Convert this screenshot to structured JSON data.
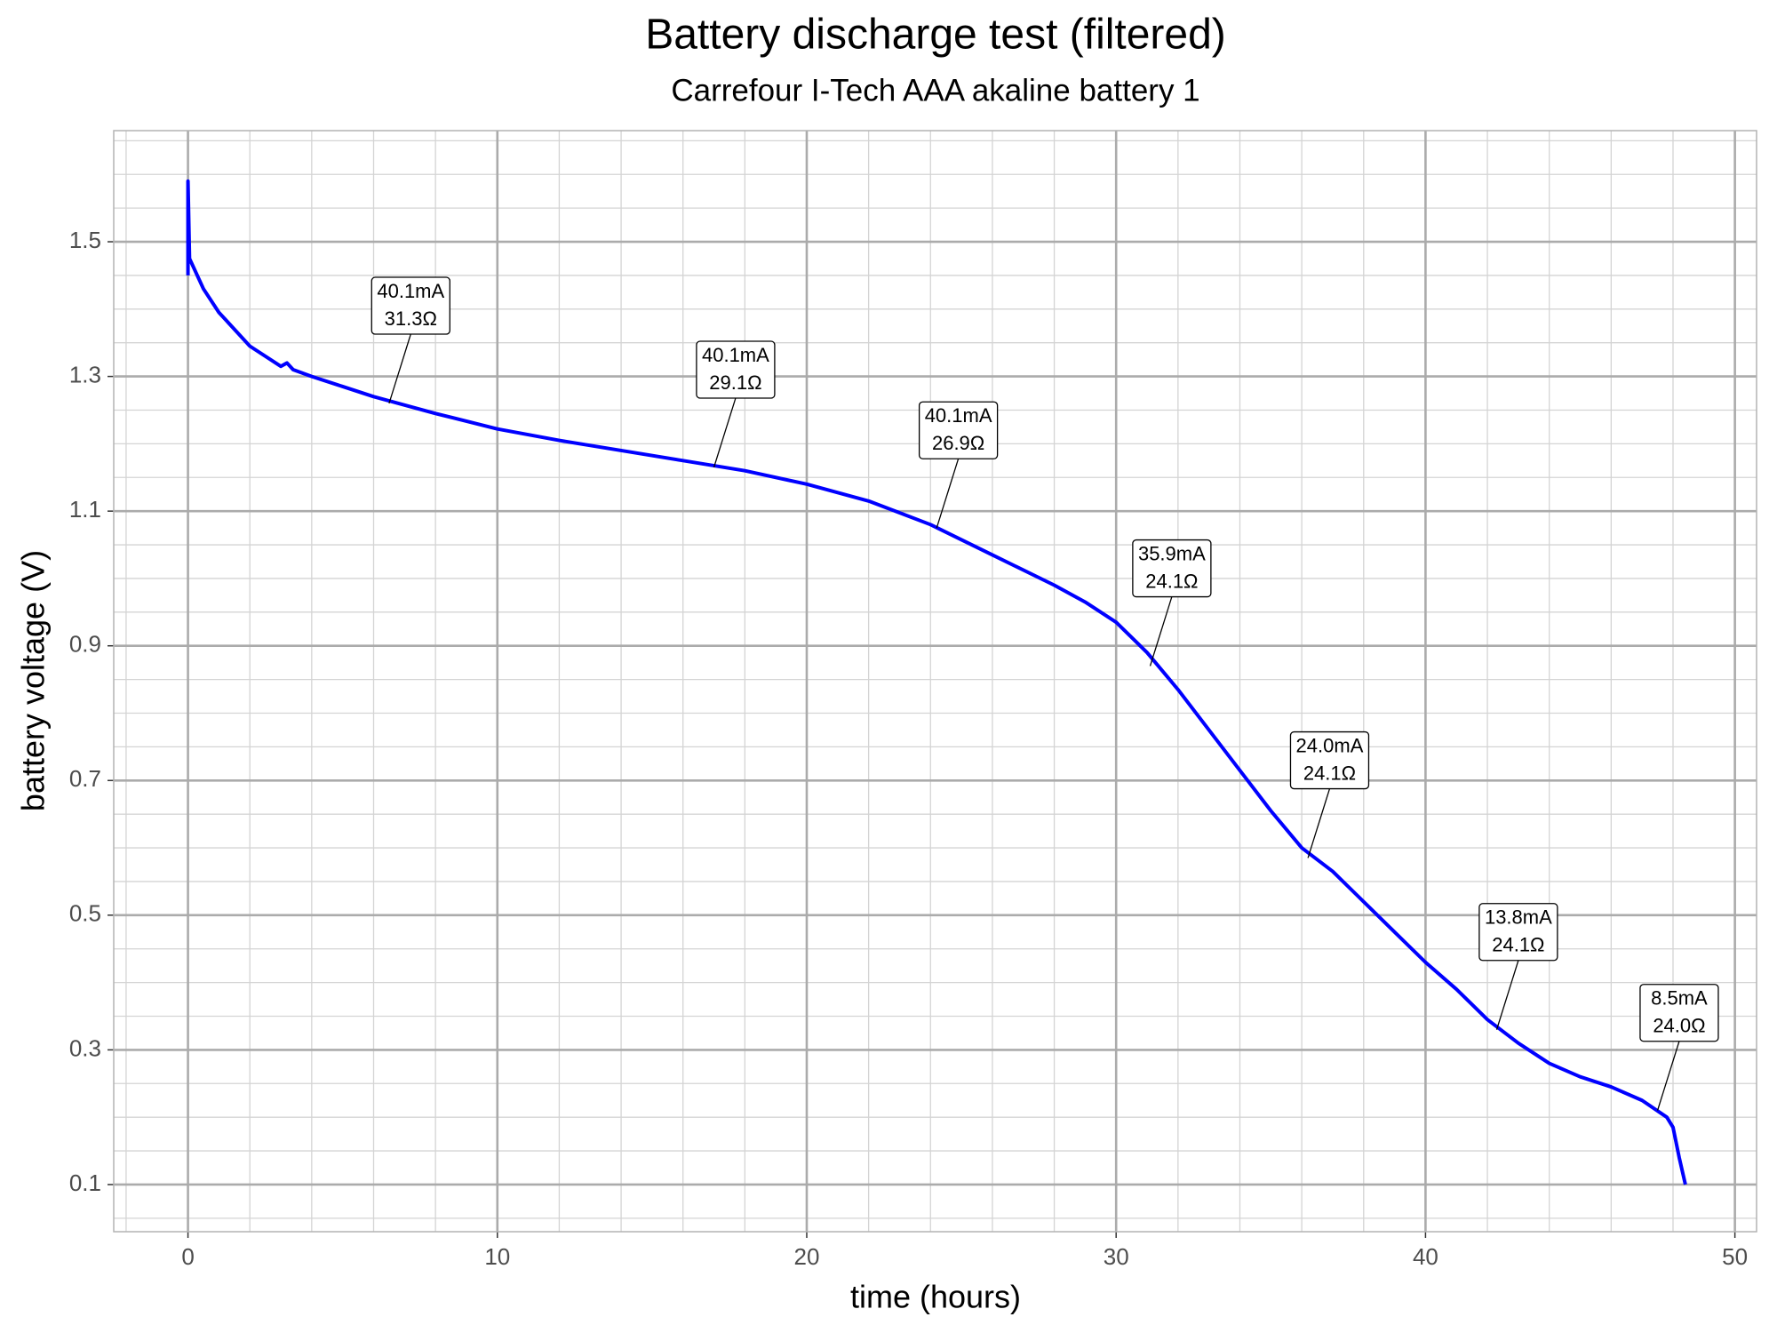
{
  "chart_data": {
    "type": "line",
    "title": "Battery discharge test (filtered)",
    "subtitle": "Carrefour I-Tech AAA akaline battery 1",
    "x_label": "time (hours)",
    "y_label": "battery voltage (V)",
    "x": [
      0,
      0,
      0.05,
      0.5,
      1,
      2,
      3,
      3.2,
      3.4,
      4,
      5,
      6,
      8,
      10,
      12,
      14,
      16,
      18,
      20,
      22,
      24,
      26,
      28,
      29,
      30,
      31,
      32,
      33,
      34,
      35,
      36,
      37,
      38,
      39,
      40,
      41,
      42,
      43,
      44,
      45,
      46,
      47,
      47.8,
      48,
      48.2,
      48.4
    ],
    "series": [
      {
        "name": "battery voltage",
        "color": "#0000ff",
        "values": [
          1.45,
          1.59,
          1.475,
          1.43,
          1.395,
          1.345,
          1.315,
          1.32,
          1.31,
          1.3,
          1.285,
          1.27,
          1.245,
          1.222,
          1.205,
          1.19,
          1.175,
          1.16,
          1.14,
          1.115,
          1.08,
          1.035,
          0.99,
          0.965,
          0.935,
          0.89,
          0.835,
          0.775,
          0.715,
          0.655,
          0.6,
          0.565,
          0.52,
          0.475,
          0.43,
          0.39,
          0.345,
          0.31,
          0.28,
          0.26,
          0.245,
          0.225,
          0.2,
          0.185,
          0.14,
          0.1
        ]
      }
    ],
    "xlim": [
      -2.4,
      50.7
    ],
    "ylim": [
      0.03,
      1.665
    ],
    "xticks": [
      0,
      10,
      20,
      30,
      40,
      50
    ],
    "yticks": [
      0.1,
      0.3,
      0.5,
      0.7,
      0.9,
      1.1,
      1.3,
      1.5
    ],
    "x_minor_ticks": [
      -2,
      2,
      4,
      6,
      8,
      12,
      14,
      16,
      18,
      22,
      24,
      26,
      28,
      32,
      34,
      36,
      38,
      42,
      44,
      46,
      48
    ],
    "y_minor_ticks": [
      0.05,
      0.15,
      0.2,
      0.25,
      0.35,
      0.4,
      0.45,
      0.55,
      0.6,
      0.65,
      0.75,
      0.8,
      0.85,
      0.95,
      1.0,
      1.05,
      1.15,
      1.2,
      1.25,
      1.35,
      1.4,
      1.45,
      1.55,
      1.6,
      1.65
    ],
    "grid": true,
    "annotations": [
      {
        "x": 6.5,
        "y": 1.26,
        "lines": [
          "40.1mA",
          "31.3Ω"
        ]
      },
      {
        "x": 17,
        "y": 1.165,
        "lines": [
          "40.1mA",
          "29.1Ω"
        ]
      },
      {
        "x": 24.2,
        "y": 1.075,
        "lines": [
          "40.1mA",
          "26.9Ω"
        ]
      },
      {
        "x": 31.1,
        "y": 0.87,
        "lines": [
          "35.9mA",
          "24.1Ω"
        ]
      },
      {
        "x": 36.2,
        "y": 0.585,
        "lines": [
          "24.0mA",
          "24.1Ω"
        ]
      },
      {
        "x": 42.3,
        "y": 0.33,
        "lines": [
          "13.8mA",
          "24.1Ω"
        ]
      },
      {
        "x": 47.5,
        "y": 0.21,
        "lines": [
          "8.5mA",
          "24.0Ω"
        ]
      }
    ]
  }
}
